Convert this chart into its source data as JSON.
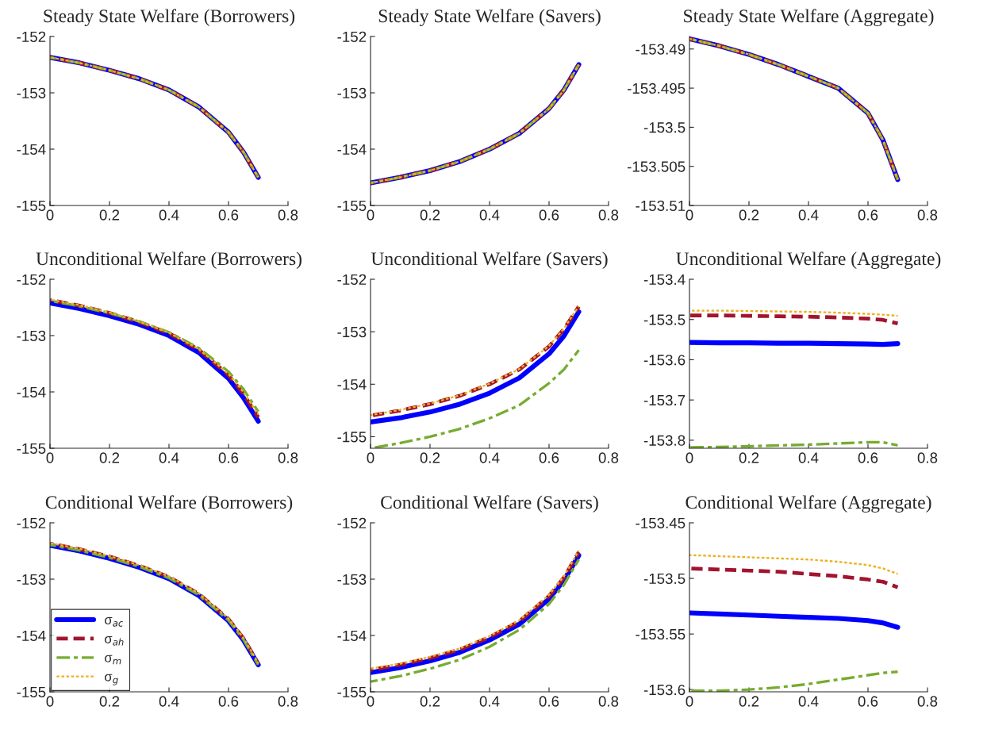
{
  "chart_data": [
    {
      "type": "line",
      "title": "Steady State Welfare (Borrowers)",
      "x": [
        0,
        0.1,
        0.2,
        0.3,
        0.4,
        0.5,
        0.6,
        0.65,
        0.7
      ],
      "xlim": [
        0,
        0.8
      ],
      "xticks": [
        0,
        0.2,
        0.4,
        0.6,
        0.8
      ],
      "ylim": [
        -155,
        -152
      ],
      "yticks": [
        -155,
        -154,
        -153,
        -152
      ],
      "grid": false,
      "legend": false,
      "series": [
        {
          "color": "#0000ff",
          "line_style": "solid",
          "values": [
            -152.37,
            -152.47,
            -152.6,
            -152.75,
            -152.95,
            -153.25,
            -153.7,
            -154.05,
            -154.5
          ]
        },
        {
          "color": "#a2142f",
          "line_style": "dashed",
          "values": [
            -152.37,
            -152.47,
            -152.6,
            -152.75,
            -152.95,
            -153.25,
            -153.7,
            -154.05,
            -154.5
          ]
        },
        {
          "color": "#77ac30",
          "line_style": "dashdot",
          "values": [
            -152.37,
            -152.47,
            -152.6,
            -152.75,
            -152.95,
            -153.25,
            -153.7,
            -154.05,
            -154.5
          ]
        },
        {
          "color": "#edb120",
          "line_style": "dotted",
          "values": [
            -152.37,
            -152.47,
            -152.6,
            -152.75,
            -152.95,
            -153.25,
            -153.7,
            -154.05,
            -154.5
          ]
        }
      ]
    },
    {
      "type": "line",
      "title": "Steady State Welfare (Savers)",
      "x": [
        0,
        0.1,
        0.2,
        0.3,
        0.4,
        0.5,
        0.6,
        0.65,
        0.7
      ],
      "xlim": [
        0,
        0.8
      ],
      "xticks": [
        0,
        0.2,
        0.4,
        0.6,
        0.8
      ],
      "ylim": [
        -155,
        -152
      ],
      "yticks": [
        -155,
        -154,
        -153,
        -152
      ],
      "grid": false,
      "legend": false,
      "series": [
        {
          "color": "#0000ff",
          "line_style": "solid",
          "values": [
            -154.6,
            -154.5,
            -154.38,
            -154.22,
            -154.0,
            -153.72,
            -153.28,
            -152.95,
            -152.5
          ]
        },
        {
          "color": "#a2142f",
          "line_style": "dashed",
          "values": [
            -154.6,
            -154.5,
            -154.38,
            -154.22,
            -154.0,
            -153.72,
            -153.28,
            -152.95,
            -152.5
          ]
        },
        {
          "color": "#77ac30",
          "line_style": "dashdot",
          "values": [
            -154.6,
            -154.5,
            -154.38,
            -154.22,
            -154.0,
            -153.72,
            -153.28,
            -152.95,
            -152.5
          ]
        },
        {
          "color": "#edb120",
          "line_style": "dotted",
          "values": [
            -154.6,
            -154.5,
            -154.38,
            -154.22,
            -154.0,
            -153.72,
            -153.28,
            -152.95,
            -152.5
          ]
        }
      ]
    },
    {
      "type": "line",
      "title": "Steady State Welfare (Aggregate)",
      "x": [
        0,
        0.1,
        0.2,
        0.3,
        0.4,
        0.5,
        0.6,
        0.65,
        0.7
      ],
      "xlim": [
        0,
        0.8
      ],
      "xticks": [
        0,
        0.2,
        0.4,
        0.6,
        0.8
      ],
      "ylim": [
        -153.51,
        -153.4884
      ],
      "yticks": [
        -153.51,
        -153.505,
        -153.5,
        -153.495,
        -153.49
      ],
      "grid": false,
      "legend": false,
      "series": [
        {
          "color": "#0000ff",
          "line_style": "solid",
          "values": [
            -153.4887,
            -153.4896,
            -153.4907,
            -153.492,
            -153.4935,
            -153.495,
            -153.4982,
            -153.5016,
            -153.5067
          ]
        },
        {
          "color": "#a2142f",
          "line_style": "dashed",
          "values": [
            -153.4887,
            -153.4896,
            -153.4907,
            -153.492,
            -153.4935,
            -153.495,
            -153.4982,
            -153.5016,
            -153.5067
          ]
        },
        {
          "color": "#77ac30",
          "line_style": "dashdot",
          "values": [
            -153.4887,
            -153.4896,
            -153.4907,
            -153.492,
            -153.4935,
            -153.495,
            -153.4982,
            -153.5016,
            -153.5067
          ]
        },
        {
          "color": "#edb120",
          "line_style": "dotted",
          "values": [
            -153.4887,
            -153.4896,
            -153.4907,
            -153.492,
            -153.4935,
            -153.495,
            -153.4982,
            -153.5016,
            -153.5067
          ]
        }
      ]
    },
    {
      "type": "line",
      "title": "Unconditional Welfare (Borrowers)",
      "x": [
        0,
        0.1,
        0.2,
        0.3,
        0.4,
        0.5,
        0.6,
        0.65,
        0.7
      ],
      "xlim": [
        0,
        0.8
      ],
      "xticks": [
        0,
        0.2,
        0.4,
        0.6,
        0.8
      ],
      "ylim": [
        -155,
        -152
      ],
      "yticks": [
        -155,
        -154,
        -153,
        -152
      ],
      "grid": false,
      "legend": false,
      "series": [
        {
          "color": "#0000ff",
          "line_style": "solid",
          "values": [
            -152.42,
            -152.52,
            -152.65,
            -152.8,
            -153.0,
            -153.3,
            -153.76,
            -154.1,
            -154.52
          ]
        },
        {
          "color": "#a2142f",
          "line_style": "dashed",
          "values": [
            -152.37,
            -152.47,
            -152.6,
            -152.76,
            -152.96,
            -153.25,
            -153.7,
            -154.03,
            -154.45
          ]
        },
        {
          "color": "#77ac30",
          "line_style": "dashdot",
          "values": [
            -152.38,
            -152.48,
            -152.6,
            -152.75,
            -152.94,
            -153.22,
            -153.64,
            -153.95,
            -154.35
          ]
        },
        {
          "color": "#edb120",
          "line_style": "dotted",
          "values": [
            -152.36,
            -152.46,
            -152.59,
            -152.75,
            -152.95,
            -153.24,
            -153.68,
            -154.0,
            -154.4
          ]
        }
      ]
    },
    {
      "type": "line",
      "title": "Unconditional Welfare (Savers)",
      "x": [
        0,
        0.1,
        0.2,
        0.3,
        0.4,
        0.5,
        0.6,
        0.65,
        0.7
      ],
      "xlim": [
        0,
        0.8
      ],
      "xticks": [
        0,
        0.2,
        0.4,
        0.6,
        0.8
      ],
      "ylim": [
        -155.22,
        -152
      ],
      "yticks": [
        -155,
        -154,
        -153,
        -152
      ],
      "grid": false,
      "legend": false,
      "series": [
        {
          "color": "#0000ff",
          "line_style": "solid",
          "values": [
            -154.72,
            -154.64,
            -154.53,
            -154.38,
            -154.17,
            -153.88,
            -153.42,
            -153.08,
            -152.62
          ]
        },
        {
          "color": "#a2142f",
          "line_style": "dashed",
          "values": [
            -154.6,
            -154.5,
            -154.38,
            -154.22,
            -154.0,
            -153.72,
            -153.28,
            -152.95,
            -152.52
          ]
        },
        {
          "color": "#77ac30",
          "line_style": "dashdot",
          "values": [
            -155.22,
            -155.12,
            -155.0,
            -154.85,
            -154.65,
            -154.4,
            -153.98,
            -153.72,
            -153.35
          ]
        },
        {
          "color": "#edb120",
          "line_style": "dotted",
          "values": [
            -154.59,
            -154.49,
            -154.37,
            -154.21,
            -153.99,
            -153.71,
            -153.27,
            -152.94,
            -152.51
          ]
        }
      ]
    },
    {
      "type": "line",
      "title": "Unconditional Welfare (Aggregate)",
      "x": [
        0,
        0.1,
        0.2,
        0.3,
        0.4,
        0.5,
        0.6,
        0.65,
        0.7
      ],
      "xlim": [
        0,
        0.8
      ],
      "xticks": [
        0,
        0.2,
        0.4,
        0.6,
        0.8
      ],
      "ylim": [
        -153.82,
        -153.4
      ],
      "yticks": [
        -153.8,
        -153.7,
        -153.6,
        -153.5,
        -153.4
      ],
      "grid": false,
      "legend": false,
      "series": [
        {
          "color": "#0000ff",
          "line_style": "solid",
          "values": [
            -153.557,
            -153.558,
            -153.558,
            -153.559,
            -153.559,
            -153.56,
            -153.561,
            -153.562,
            -153.56
          ]
        },
        {
          "color": "#a2142f",
          "line_style": "dashed",
          "values": [
            -153.49,
            -153.49,
            -153.491,
            -153.492,
            -153.493,
            -153.495,
            -153.498,
            -153.501,
            -153.51
          ]
        },
        {
          "color": "#77ac30",
          "line_style": "dashdot",
          "values": [
            -153.818,
            -153.817,
            -153.815,
            -153.813,
            -153.811,
            -153.808,
            -153.805,
            -153.805,
            -153.813
          ]
        },
        {
          "color": "#edb120",
          "line_style": "dotted",
          "values": [
            -153.478,
            -153.478,
            -153.479,
            -153.48,
            -153.481,
            -153.483,
            -153.486,
            -153.488,
            -153.491
          ]
        }
      ]
    },
    {
      "type": "line",
      "title": "Conditional Welfare (Borrowers)",
      "x": [
        0,
        0.1,
        0.2,
        0.3,
        0.4,
        0.5,
        0.6,
        0.65,
        0.7
      ],
      "xlim": [
        0,
        0.8
      ],
      "xticks": [
        0,
        0.2,
        0.4,
        0.6,
        0.8
      ],
      "ylim": [
        -155,
        -152
      ],
      "yticks": [
        -155,
        -154,
        -153,
        -152
      ],
      "grid": false,
      "legend": "bottom left",
      "series": [
        {
          "name": "σ$_{ac}$",
          "color": "#0000ff",
          "line_style": "solid",
          "values": [
            -152.4,
            -152.5,
            -152.63,
            -152.79,
            -152.99,
            -153.29,
            -153.74,
            -154.08,
            -154.52
          ]
        },
        {
          "name": "σ$_{ah}$",
          "color": "#a2142f",
          "line_style": "dashed",
          "values": [
            -152.37,
            -152.47,
            -152.6,
            -152.76,
            -152.96,
            -153.26,
            -153.71,
            -154.05,
            -154.5
          ]
        },
        {
          "name": "σ$_{m}$",
          "color": "#77ac30",
          "line_style": "dashdot",
          "values": [
            -152.39,
            -152.49,
            -152.62,
            -152.78,
            -152.98,
            -153.28,
            -153.73,
            -154.07,
            -154.52
          ]
        },
        {
          "name": "σ$_{g}$",
          "color": "#edb120",
          "line_style": "dotted",
          "values": [
            -152.36,
            -152.46,
            -152.59,
            -152.75,
            -152.95,
            -153.25,
            -153.7,
            -154.04,
            -154.49
          ]
        }
      ]
    },
    {
      "type": "line",
      "title": "Conditional Welfare (Savers)",
      "x": [
        0,
        0.1,
        0.2,
        0.3,
        0.4,
        0.5,
        0.6,
        0.65,
        0.7
      ],
      "xlim": [
        0,
        0.8
      ],
      "xticks": [
        0,
        0.2,
        0.4,
        0.6,
        0.8
      ],
      "ylim": [
        -155,
        -152
      ],
      "yticks": [
        -155,
        -154,
        -153,
        -152
      ],
      "grid": false,
      "legend": false,
      "series": [
        {
          "color": "#0000ff",
          "line_style": "solid",
          "values": [
            -154.66,
            -154.57,
            -154.45,
            -154.3,
            -154.08,
            -153.8,
            -153.35,
            -153.02,
            -152.58
          ]
        },
        {
          "color": "#a2142f",
          "line_style": "dashed",
          "values": [
            -154.61,
            -154.52,
            -154.4,
            -154.25,
            -154.03,
            -153.75,
            -153.3,
            -152.97,
            -152.52
          ]
        },
        {
          "color": "#77ac30",
          "line_style": "dashdot",
          "values": [
            -154.82,
            -154.72,
            -154.59,
            -154.43,
            -154.2,
            -153.9,
            -153.44,
            -153.1,
            -152.65
          ]
        },
        {
          "color": "#edb120",
          "line_style": "dotted",
          "values": [
            -154.59,
            -154.5,
            -154.38,
            -154.23,
            -154.01,
            -153.73,
            -153.28,
            -152.95,
            -152.49
          ]
        }
      ]
    },
    {
      "type": "line",
      "title": "Conditional Welfare (Aggregate)",
      "x": [
        0,
        0.1,
        0.2,
        0.3,
        0.4,
        0.5,
        0.6,
        0.65,
        0.7
      ],
      "xlim": [
        0,
        0.8
      ],
      "xticks": [
        0,
        0.2,
        0.4,
        0.6,
        0.8
      ],
      "ylim": [
        -153.602,
        -153.45
      ],
      "yticks": [
        -153.6,
        -153.55,
        -153.5,
        -153.45
      ],
      "grid": false,
      "legend": false,
      "series": [
        {
          "color": "#0000ff",
          "line_style": "solid",
          "values": [
            -153.531,
            -153.532,
            -153.533,
            -153.534,
            -153.535,
            -153.536,
            -153.538,
            -153.54,
            -153.544
          ]
        },
        {
          "color": "#a2142f",
          "line_style": "dashed",
          "values": [
            -153.491,
            -153.492,
            -153.493,
            -153.494,
            -153.496,
            -153.498,
            -153.501,
            -153.503,
            -153.508
          ]
        },
        {
          "color": "#77ac30",
          "line_style": "dashdot",
          "values": [
            -153.601,
            -153.601,
            -153.6,
            -153.598,
            -153.595,
            -153.591,
            -153.587,
            -153.585,
            -153.584
          ]
        },
        {
          "color": "#edb120",
          "line_style": "dotted",
          "values": [
            -153.479,
            -153.48,
            -153.481,
            -153.482,
            -153.483,
            -153.485,
            -153.488,
            -153.491,
            -153.496
          ]
        }
      ]
    }
  ]
}
